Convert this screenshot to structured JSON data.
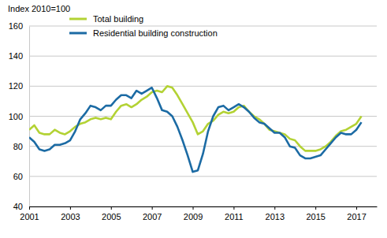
{
  "chart_data": {
    "type": "line",
    "title": "Index 2010=100",
    "x": [
      2001,
      2001.25,
      2001.5,
      2001.75,
      2002,
      2002.25,
      2002.5,
      2002.75,
      2003,
      2003.25,
      2003.5,
      2003.75,
      2004,
      2004.25,
      2004.5,
      2004.75,
      2005,
      2005.25,
      2005.5,
      2005.75,
      2006,
      2006.25,
      2006.5,
      2006.75,
      2007,
      2007.25,
      2007.5,
      2007.75,
      2008,
      2008.25,
      2008.5,
      2008.75,
      2009,
      2009.25,
      2009.5,
      2009.75,
      2010,
      2010.25,
      2010.5,
      2010.75,
      2011,
      2011.25,
      2011.5,
      2011.75,
      2012,
      2012.25,
      2012.5,
      2012.75,
      2013,
      2013.25,
      2013.5,
      2013.75,
      2014,
      2014.25,
      2014.5,
      2014.75,
      2015,
      2015.25,
      2015.5,
      2015.75,
      2016,
      2016.25,
      2016.5,
      2016.75,
      2017,
      2017.25
    ],
    "series": [
      {
        "name": "Total building",
        "color": "#b3d234",
        "values": [
          91,
          94,
          89,
          88,
          88,
          91,
          89,
          88,
          90,
          93,
          95,
          96,
          98,
          99,
          98,
          99,
          98,
          103,
          107,
          108,
          106,
          108,
          111,
          113,
          116,
          117,
          116,
          120,
          119,
          114,
          108,
          102,
          96,
          88,
          90,
          95,
          97,
          101,
          103,
          102,
          103,
          106,
          107,
          103,
          100,
          98,
          95,
          91,
          90,
          89,
          88,
          85,
          84,
          80,
          77,
          77,
          77,
          78,
          80,
          83,
          87,
          90,
          91,
          93,
          95,
          100
        ]
      },
      {
        "name": "Residential building construction",
        "color": "#1c6ba4",
        "values": [
          86,
          83,
          78,
          77,
          78,
          81,
          81,
          82,
          84,
          90,
          98,
          102,
          107,
          106,
          104,
          107,
          107,
          111,
          114,
          114,
          112,
          117,
          115,
          117,
          119,
          112,
          104,
          103,
          100,
          93,
          84,
          74,
          63,
          64,
          75,
          90,
          100,
          106,
          107,
          104,
          106,
          108,
          106,
          103,
          99,
          96,
          95,
          92,
          89,
          89,
          86,
          80,
          79,
          74,
          72,
          72,
          73,
          74,
          78,
          82,
          86,
          89,
          88,
          88,
          91,
          96
        ]
      }
    ],
    "xlim": [
      2001,
      2018
    ],
    "xticks": [
      2001,
      2003,
      2005,
      2007,
      2009,
      2011,
      2013,
      2015,
      2017
    ],
    "ylim": [
      40,
      160
    ],
    "yticks": [
      40,
      60,
      80,
      100,
      120,
      140,
      160
    ],
    "grid": true,
    "legend": "top-left"
  }
}
